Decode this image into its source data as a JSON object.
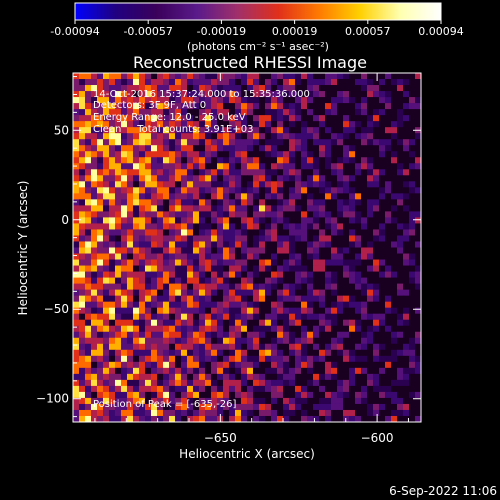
{
  "chart_data": {
    "type": "heatmap",
    "title": "Reconstructed RHESSI Image",
    "xlabel": "Heliocentric X (arcsec)",
    "ylabel": "Heliocentric Y (arcsec)",
    "xlim": [
      -697,
      -586
    ],
    "ylim": [
      -113,
      82
    ],
    "xticks": [
      -650,
      -600,
      -550
    ],
    "yticks": [
      -100,
      -50,
      0,
      50
    ],
    "colorbar": {
      "min": -0.00094,
      "max": 0.00094,
      "ticks": [
        "-0.00094",
        "-0.00057",
        "-0.00019",
        "0.00019",
        "0.00057",
        "0.00094"
      ],
      "unit_label": "(photons cm⁻² s⁻¹ asec⁻²)",
      "colors": [
        "#0000ff",
        "#200080",
        "#3a005a",
        "#5a1a8a",
        "#a0306a",
        "#e0301a",
        "#ff7a00",
        "#ffd000",
        "#ffffb0",
        "#ffffff"
      ]
    },
    "annotations": {
      "time_range": "14-Oct-2016 15:37:24.000 to 15:35:36.000",
      "detectors": "Detectors: 3F 9F, Att 0",
      "energy_range": "Energy Range: 12.0 - 25.0 keV",
      "algorithm": "Clean     Total counts: 3.91E+03",
      "peak_position": "Position of Peak = [-635,-26]"
    },
    "peak": {
      "x": -635,
      "y": -26
    },
    "grid": false
  },
  "footer": {
    "timestamp": "6-Sep-2022 11:06"
  }
}
